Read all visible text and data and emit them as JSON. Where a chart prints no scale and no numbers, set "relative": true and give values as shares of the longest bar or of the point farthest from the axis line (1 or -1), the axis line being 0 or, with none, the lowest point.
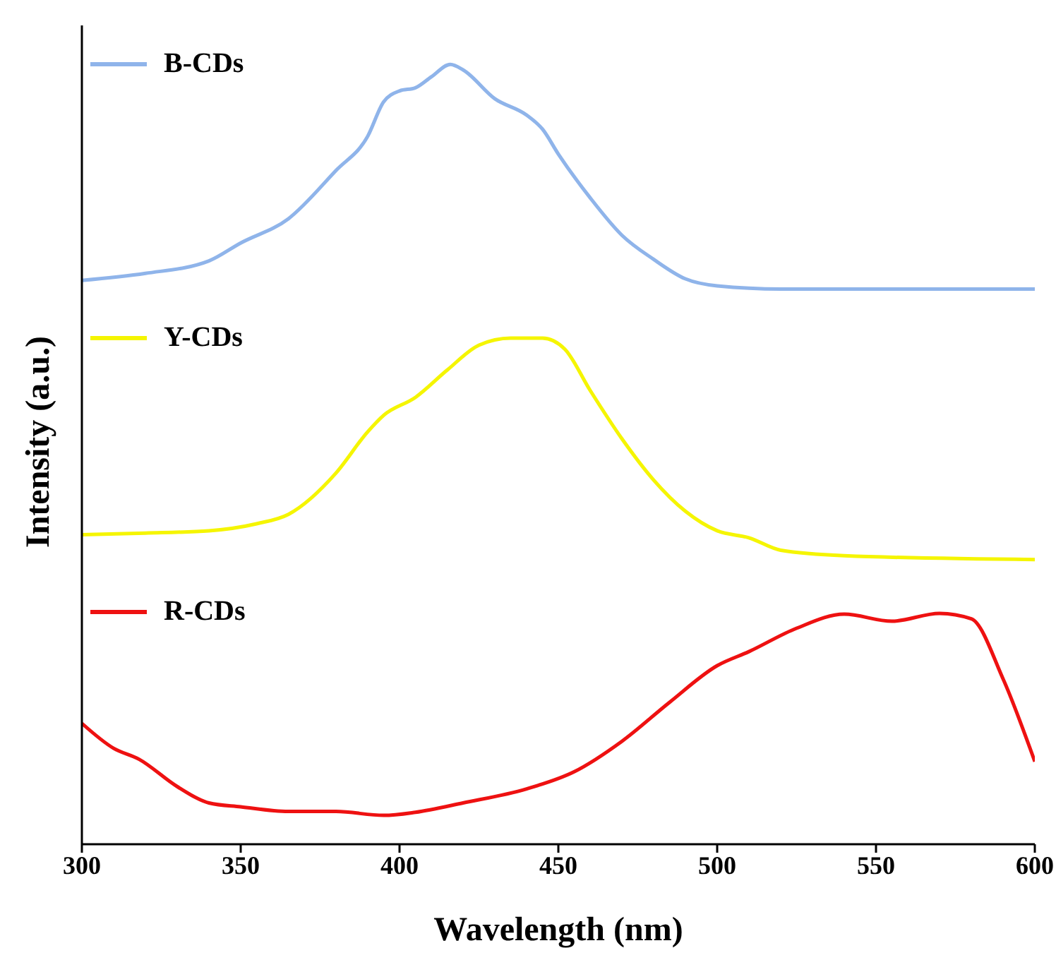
{
  "chart_data": {
    "type": "line",
    "relative": true,
    "xlabel": "Wavelength (nm)",
    "ylabel": "Intensity (a.u.)",
    "xlim": [
      300,
      600
    ],
    "xticks": [
      300,
      350,
      400,
      450,
      500,
      550,
      600
    ],
    "legend": "top left",
    "series": [
      {
        "name": "B-CDs",
        "color": "#8fb4ea",
        "x": [
          300,
          320,
          340,
          350,
          365,
          380,
          390,
          395,
          400,
          405,
          410,
          416,
          420,
          430,
          440,
          445,
          450,
          460,
          470,
          480,
          490,
          500,
          520,
          600
        ],
        "values": [
          0.723,
          0.732,
          0.748,
          0.771,
          0.802,
          0.864,
          0.908,
          0.952,
          0.966,
          0.97,
          0.984,
          1,
          0.993,
          0.956,
          0.935,
          0.917,
          0.885,
          0.829,
          0.781,
          0.75,
          0.725,
          0.716,
          0.712,
          0.712
        ]
      },
      {
        "name": "Y-CDs",
        "color": "#f5f500",
        "x": [
          300,
          320,
          340,
          355,
          365,
          380,
          390,
          395,
          405,
          415,
          425,
          435,
          445,
          452,
          460,
          470,
          480,
          490,
          500,
          510,
          520,
          540,
          600
        ],
        "values": [
          0.397,
          0.399,
          0.402,
          0.411,
          0.423,
          0.476,
          0.529,
          0.55,
          0.573,
          0.608,
          0.64,
          0.649,
          0.649,
          0.635,
          0.582,
          0.52,
          0.467,
          0.427,
          0.402,
          0.393,
          0.377,
          0.37,
          0.365
        ]
      },
      {
        "name": "R-CDs",
        "color": "#ee1111",
        "x": [
          300,
          310,
          318,
          330,
          340,
          350,
          365,
          380,
          395,
          405,
          420,
          440,
          455,
          470,
          485,
          500,
          510,
          525,
          540,
          555,
          570,
          580,
          590,
          600
        ],
        "values": [
          0.155,
          0.123,
          0.109,
          0.074,
          0.053,
          0.048,
          0.042,
          0.042,
          0.037,
          0.041,
          0.053,
          0.071,
          0.093,
          0.132,
          0.182,
          0.229,
          0.247,
          0.277,
          0.295,
          0.286,
          0.296,
          0.289,
          0.212,
          0.106
        ]
      }
    ]
  }
}
